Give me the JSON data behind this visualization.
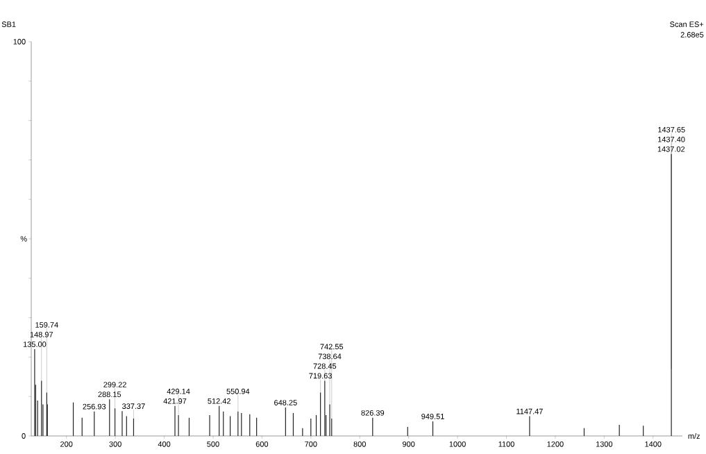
{
  "chart_data": {
    "type": "bar",
    "title": "SB1",
    "xlabel": "m/z",
    "ylabel": "%",
    "annotations": [
      "Scan ES+",
      "2.68e5",
      {
        "text": "135.00",
        "x": 135.0,
        "y": 22
      },
      {
        "text": "148.97",
        "x": 148.97,
        "y": 14
      },
      {
        "text": "159.74",
        "x": 159.74,
        "y": 11
      },
      {
        "text": "256.93",
        "x": 256.93,
        "y": 6.2
      },
      {
        "text": "288.15",
        "x": 288.15,
        "y": 9.3
      },
      {
        "text": "299.22",
        "x": 299.22,
        "y": 7
      },
      {
        "text": "337.37",
        "x": 337.37,
        "y": 4.4
      },
      {
        "text": "421.97",
        "x": 421.97,
        "y": 7.6
      },
      {
        "text": "429.14",
        "x": 429.14,
        "y": 5.3
      },
      {
        "text": "512.42",
        "x": 512.42,
        "y": 7.6
      },
      {
        "text": "550.94",
        "x": 550.94,
        "y": 6.2
      },
      {
        "text": "648.25",
        "x": 648.25,
        "y": 7.2
      },
      {
        "text": "719.63",
        "x": 719.63,
        "y": 11
      },
      {
        "text": "728.45",
        "x": 728.45,
        "y": 14
      },
      {
        "text": "738.64",
        "x": 738.64,
        "y": 8
      },
      {
        "text": "742.55",
        "x": 742.55,
        "y": 4.4
      },
      {
        "text": "826.39",
        "x": 826.39,
        "y": 4.6
      },
      {
        "text": "949.51",
        "x": 949.51,
        "y": 3.7
      },
      {
        "text": "1147.47",
        "x": 1147.47,
        "y": 5
      },
      {
        "text": "1437.02",
        "x": 1437.02,
        "y": 17
      },
      {
        "text": "1437.40",
        "x": 1437.4,
        "y": 71.5
      },
      {
        "text": "1437.65",
        "x": 1437.65,
        "y": 17
      }
    ],
    "color": "#222222",
    "x": [
      135.0,
      137,
      141,
      148.97,
      152,
      159.74,
      161,
      214,
      232,
      256.93,
      288.15,
      299.22,
      314,
      323,
      337.37,
      421.97,
      429.14,
      451,
      493,
      512.42,
      521,
      535,
      550.94,
      558,
      575,
      589,
      648.25,
      664,
      683,
      700,
      711,
      719.63,
      728.45,
      731,
      738.64,
      742.55,
      826.39,
      898,
      949.51,
      1147.47,
      1259,
      1331,
      1380,
      1437.4
    ],
    "values": [
      22,
      13,
      9,
      14,
      8,
      11,
      8,
      8.5,
      4.6,
      6.2,
      9.3,
      7,
      6.3,
      5,
      4.4,
      7.6,
      5.3,
      4.6,
      5.3,
      7.6,
      6.2,
      5,
      6.2,
      5.8,
      5.5,
      4.6,
      7.2,
      5.8,
      2,
      4.4,
      5.3,
      11,
      14,
      5.3,
      8,
      4.4,
      4.6,
      2.3,
      3.7,
      5,
      2,
      2.8,
      2.6,
      71.5
    ],
    "xlim": [
      128,
      1460
    ],
    "ylim": [
      0,
      100
    ],
    "xticks": [
      200,
      300,
      400,
      500,
      600,
      700,
      800,
      900,
      1000,
      1100,
      1200,
      1300,
      1400
    ],
    "yticks": [
      0,
      {
        "value": 10,
        "label": null
      },
      {
        "value": 20,
        "label": null
      },
      {
        "value": 30,
        "label": null
      },
      {
        "value": 40,
        "label": null
      },
      {
        "value": 50,
        "label": null
      },
      {
        "value": 60,
        "label": null
      },
      {
        "value": 70,
        "label": null
      },
      {
        "value": 80,
        "label": null
      },
      {
        "value": 90,
        "label": null
      },
      100
    ]
  }
}
